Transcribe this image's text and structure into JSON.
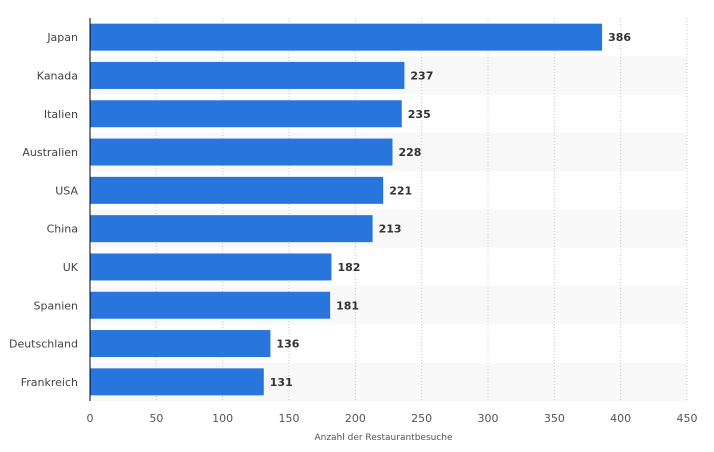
{
  "chart_data": {
    "type": "bar",
    "orientation": "horizontal",
    "categories": [
      "Japan",
      "Kanada",
      "Italien",
      "Australien",
      "USA",
      "China",
      "UK",
      "Spanien",
      "Deutschland",
      "Frankreich"
    ],
    "values": [
      386,
      237,
      235,
      228,
      221,
      213,
      182,
      181,
      136,
      131
    ],
    "xlabel": "Anzahl der Restaurantbesuche",
    "ylabel": "",
    "xlim": [
      0,
      450
    ],
    "ticks": [
      0,
      50,
      100,
      150,
      200,
      250,
      300,
      350,
      400,
      450
    ],
    "grid": "vertical dotted",
    "bar_color": "#2876dd",
    "band_color": "#f8f8f8"
  }
}
